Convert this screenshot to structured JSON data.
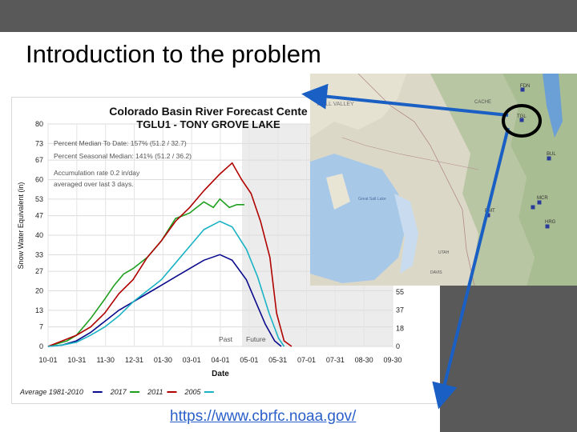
{
  "slide": {
    "title": "Introduction to the problem",
    "link": "https://www.cbrfc.noaa.gov/"
  },
  "colors": {
    "average": "#0a0a8c",
    "y2017": "#1f9f1f",
    "y2011": "#b00000",
    "y2005": "#19b3c4",
    "arrow": "#1a5fc4",
    "background": "#595959"
  },
  "chart_data": {
    "type": "line",
    "title": "Colorado Basin River Forecast Cente",
    "subtitle": "TGLU1 - TONY GROVE LAKE",
    "xlabel": "Date",
    "ylabel": "Snow Water Equivalent (in)",
    "categories": [
      "10-01",
      "10-31",
      "11-30",
      "12-31",
      "01-30",
      "03-01",
      "04-01",
      "05-01",
      "05-31",
      "07-01",
      "07-31",
      "08-30",
      "09-30"
    ],
    "yticks_left": [
      "80",
      "73",
      "67",
      "60",
      "53",
      "47",
      "40",
      "33",
      "27",
      "20",
      "13",
      "7",
      "0"
    ],
    "yticks_right": [
      "55",
      "37",
      "18",
      "0"
    ],
    "annotations": [
      "Percent Median To Date: 157% (51.2 / 32.7)",
      "Percent Seasonal Median: 141% (51.2 / 36.2)",
      "Accumulation rate 0.2 in/day",
      "averaged over last 3 days.",
      "Past",
      "Future"
    ],
    "legend": [
      {
        "label": "Average 1981-2010",
        "color": "#0a0a8c"
      },
      {
        "label": "2017",
        "color": "#1f9f1f"
      },
      {
        "label": "2011",
        "color": "#b00000"
      },
      {
        "label": "2005",
        "color": "#19b3c4"
      }
    ],
    "ylim": [
      0,
      80
    ],
    "series": [
      {
        "name": "Average 1981-2010",
        "color": "#0a0a8c",
        "x": [
          0,
          15,
          30,
          45,
          60,
          75,
          90,
          105,
          120,
          135,
          150,
          165,
          182,
          195,
          210,
          220,
          230,
          240,
          247
        ],
        "y": [
          0,
          0.5,
          2,
          5,
          9,
          13,
          16,
          19,
          22,
          25,
          28,
          31,
          33,
          31,
          24,
          16,
          8,
          2,
          0
        ]
      },
      {
        "name": "2017",
        "color": "#1f9f1f",
        "x": [
          0,
          10,
          20,
          30,
          45,
          60,
          70,
          80,
          90,
          105,
          120,
          135,
          150,
          165,
          175,
          182,
          192,
          200,
          208
        ],
        "y": [
          0,
          1,
          2,
          4,
          10,
          17,
          22,
          26,
          28,
          32,
          38,
          46,
          48,
          52,
          50,
          53,
          50,
          51,
          51
        ]
      },
      {
        "name": "2011",
        "color": "#b00000",
        "x": [
          0,
          15,
          30,
          45,
          60,
          75,
          90,
          105,
          120,
          135,
          150,
          165,
          182,
          195,
          205,
          215,
          225,
          235,
          242,
          250,
          258
        ],
        "y": [
          0,
          2,
          4,
          7,
          12,
          19,
          24,
          32,
          38,
          45,
          50,
          56,
          62,
          66,
          60,
          55,
          45,
          32,
          12,
          2,
          0
        ]
      },
      {
        "name": "2005",
        "color": "#19b3c4",
        "x": [
          0,
          15,
          30,
          45,
          60,
          75,
          90,
          105,
          120,
          135,
          150,
          165,
          182,
          195,
          210,
          222,
          234,
          244,
          250
        ],
        "y": [
          0,
          0.5,
          1.5,
          4,
          7,
          11,
          16,
          20,
          24,
          30,
          36,
          42,
          45,
          43,
          35,
          25,
          12,
          3,
          0
        ]
      }
    ]
  },
  "map": {
    "labels": [
      "CACHE",
      "TGL",
      "FDN",
      "BUL",
      "MCR",
      "EMT",
      "HRG",
      "Great Salt Lake",
      "UTAH",
      "DAVIS",
      "WELL VALLEY"
    ]
  }
}
